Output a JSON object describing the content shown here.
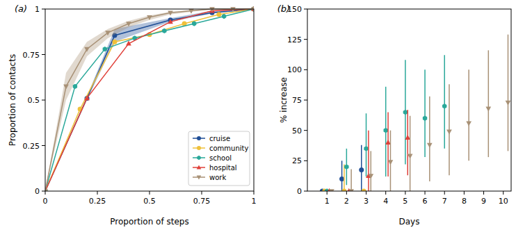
{
  "chart_data": [
    {
      "type": "line",
      "title": "(a)",
      "x_label": "Proportion of steps",
      "y_label": "Proportion of contacts",
      "xlim": [
        0,
        1
      ],
      "ylim": [
        0,
        1
      ],
      "xticks": [
        0,
        0.25,
        0.5,
        0.75,
        1
      ],
      "yticks": [
        0,
        0.25,
        0.5,
        0.75,
        1
      ],
      "grid": false,
      "legend": "lower right",
      "series": [
        {
          "name": "cruise",
          "color": "#1f4e96",
          "marker": "circle",
          "x": [
            0,
            0.2,
            0.333,
            0.6,
            0.8,
            1
          ],
          "values": [
            0,
            0.51,
            0.855,
            0.94,
            0.98,
            1
          ],
          "band_lower": [
            0,
            0.5,
            0.82,
            0.93,
            0.975,
            1
          ],
          "band_upper": [
            0,
            0.52,
            0.89,
            0.95,
            0.99,
            1
          ]
        },
        {
          "name": "community",
          "color": "#efc03a",
          "marker": "circle",
          "x": [
            0,
            0.167,
            0.333,
            0.5,
            0.667,
            0.833,
            1
          ],
          "values": [
            0,
            0.45,
            0.82,
            0.86,
            0.92,
            0.97,
            1
          ]
        },
        {
          "name": "school",
          "color": "#2aa89a",
          "marker": "hexagon",
          "x": [
            0,
            0.143,
            0.286,
            0.429,
            0.571,
            0.714,
            0.857,
            1
          ],
          "values": [
            0,
            0.575,
            0.78,
            0.84,
            0.88,
            0.92,
            0.96,
            1
          ]
        },
        {
          "name": "hospital",
          "color": "#e0413a",
          "marker": "triangle-up",
          "x": [
            0,
            0.2,
            0.4,
            0.6,
            0.8,
            1
          ],
          "values": [
            0,
            0.51,
            0.81,
            0.93,
            0.99,
            1
          ]
        },
        {
          "name": "work",
          "color": "#a89176",
          "marker": "triangle-down",
          "x": [
            0,
            0.1,
            0.2,
            0.3,
            0.4,
            0.5,
            0.6,
            0.7,
            0.8,
            0.9,
            1
          ],
          "values": [
            0,
            0.575,
            0.78,
            0.87,
            0.92,
            0.955,
            0.98,
            0.99,
            1,
            1,
            1
          ],
          "band_lower": [
            0,
            0.5,
            0.74,
            0.84,
            0.9,
            0.94,
            0.97,
            0.985,
            1,
            1,
            1
          ],
          "band_upper": [
            0,
            0.65,
            0.82,
            0.89,
            0.935,
            0.965,
            0.985,
            0.995,
            1,
            1,
            1
          ]
        }
      ]
    },
    {
      "type": "scatter",
      "title": "(b)",
      "x_label": "Days",
      "y_label": "% increase",
      "xlim": [
        0,
        10.4
      ],
      "ylim": [
        0,
        150
      ],
      "xticks": [
        1,
        2,
        3,
        4,
        5,
        6,
        7,
        8,
        9,
        10
      ],
      "yticks": [
        0,
        25,
        50,
        75,
        100,
        125,
        150
      ],
      "grid": false,
      "series": [
        {
          "name": "cruise",
          "color": "#1f4e96",
          "marker": "circle",
          "x": [
            1,
            2,
            3
          ],
          "values": [
            0,
            10,
            17.5
          ],
          "lower": [
            0,
            0,
            0
          ],
          "upper": [
            0,
            25,
            38
          ]
        },
        {
          "name": "community",
          "color": "#efc03a",
          "marker": "circle",
          "x": [
            1,
            2,
            3
          ],
          "values": [
            0,
            0,
            0
          ],
          "lower": [
            0,
            0,
            0
          ],
          "upper": [
            0,
            22,
            0
          ]
        },
        {
          "name": "school",
          "color": "#2aa89a",
          "marker": "hexagon",
          "x": [
            1,
            2,
            3,
            4,
            5,
            6,
            7
          ],
          "values": [
            0,
            20,
            35,
            50,
            65,
            60,
            70
          ],
          "lower": [
            0,
            5,
            12,
            12,
            22,
            28,
            35
          ],
          "upper": [
            0,
            35,
            64,
            86,
            108,
            100,
            112
          ]
        },
        {
          "name": "hospital",
          "color": "#e0413a",
          "marker": "triangle-up",
          "x": [
            1,
            2,
            3,
            4,
            5
          ],
          "values": [
            0,
            0,
            12.5,
            40,
            44
          ],
          "lower": [
            0,
            0,
            0,
            12,
            13
          ],
          "upper": [
            0,
            0,
            50,
            65,
            67
          ]
        },
        {
          "name": "work",
          "color": "#a89176",
          "marker": "triangle-down",
          "x": [
            1,
            2,
            3,
            4,
            5,
            6,
            7,
            8,
            9,
            10
          ],
          "values": [
            0,
            0,
            12.5,
            24,
            29,
            38,
            49,
            56,
            68,
            73
          ],
          "lower": [
            0,
            0,
            0,
            0,
            0,
            8,
            13,
            25,
            28,
            33
          ],
          "upper": [
            0,
            18,
            33,
            50,
            62,
            78,
            88,
            100,
            116,
            129
          ]
        }
      ]
    }
  ]
}
